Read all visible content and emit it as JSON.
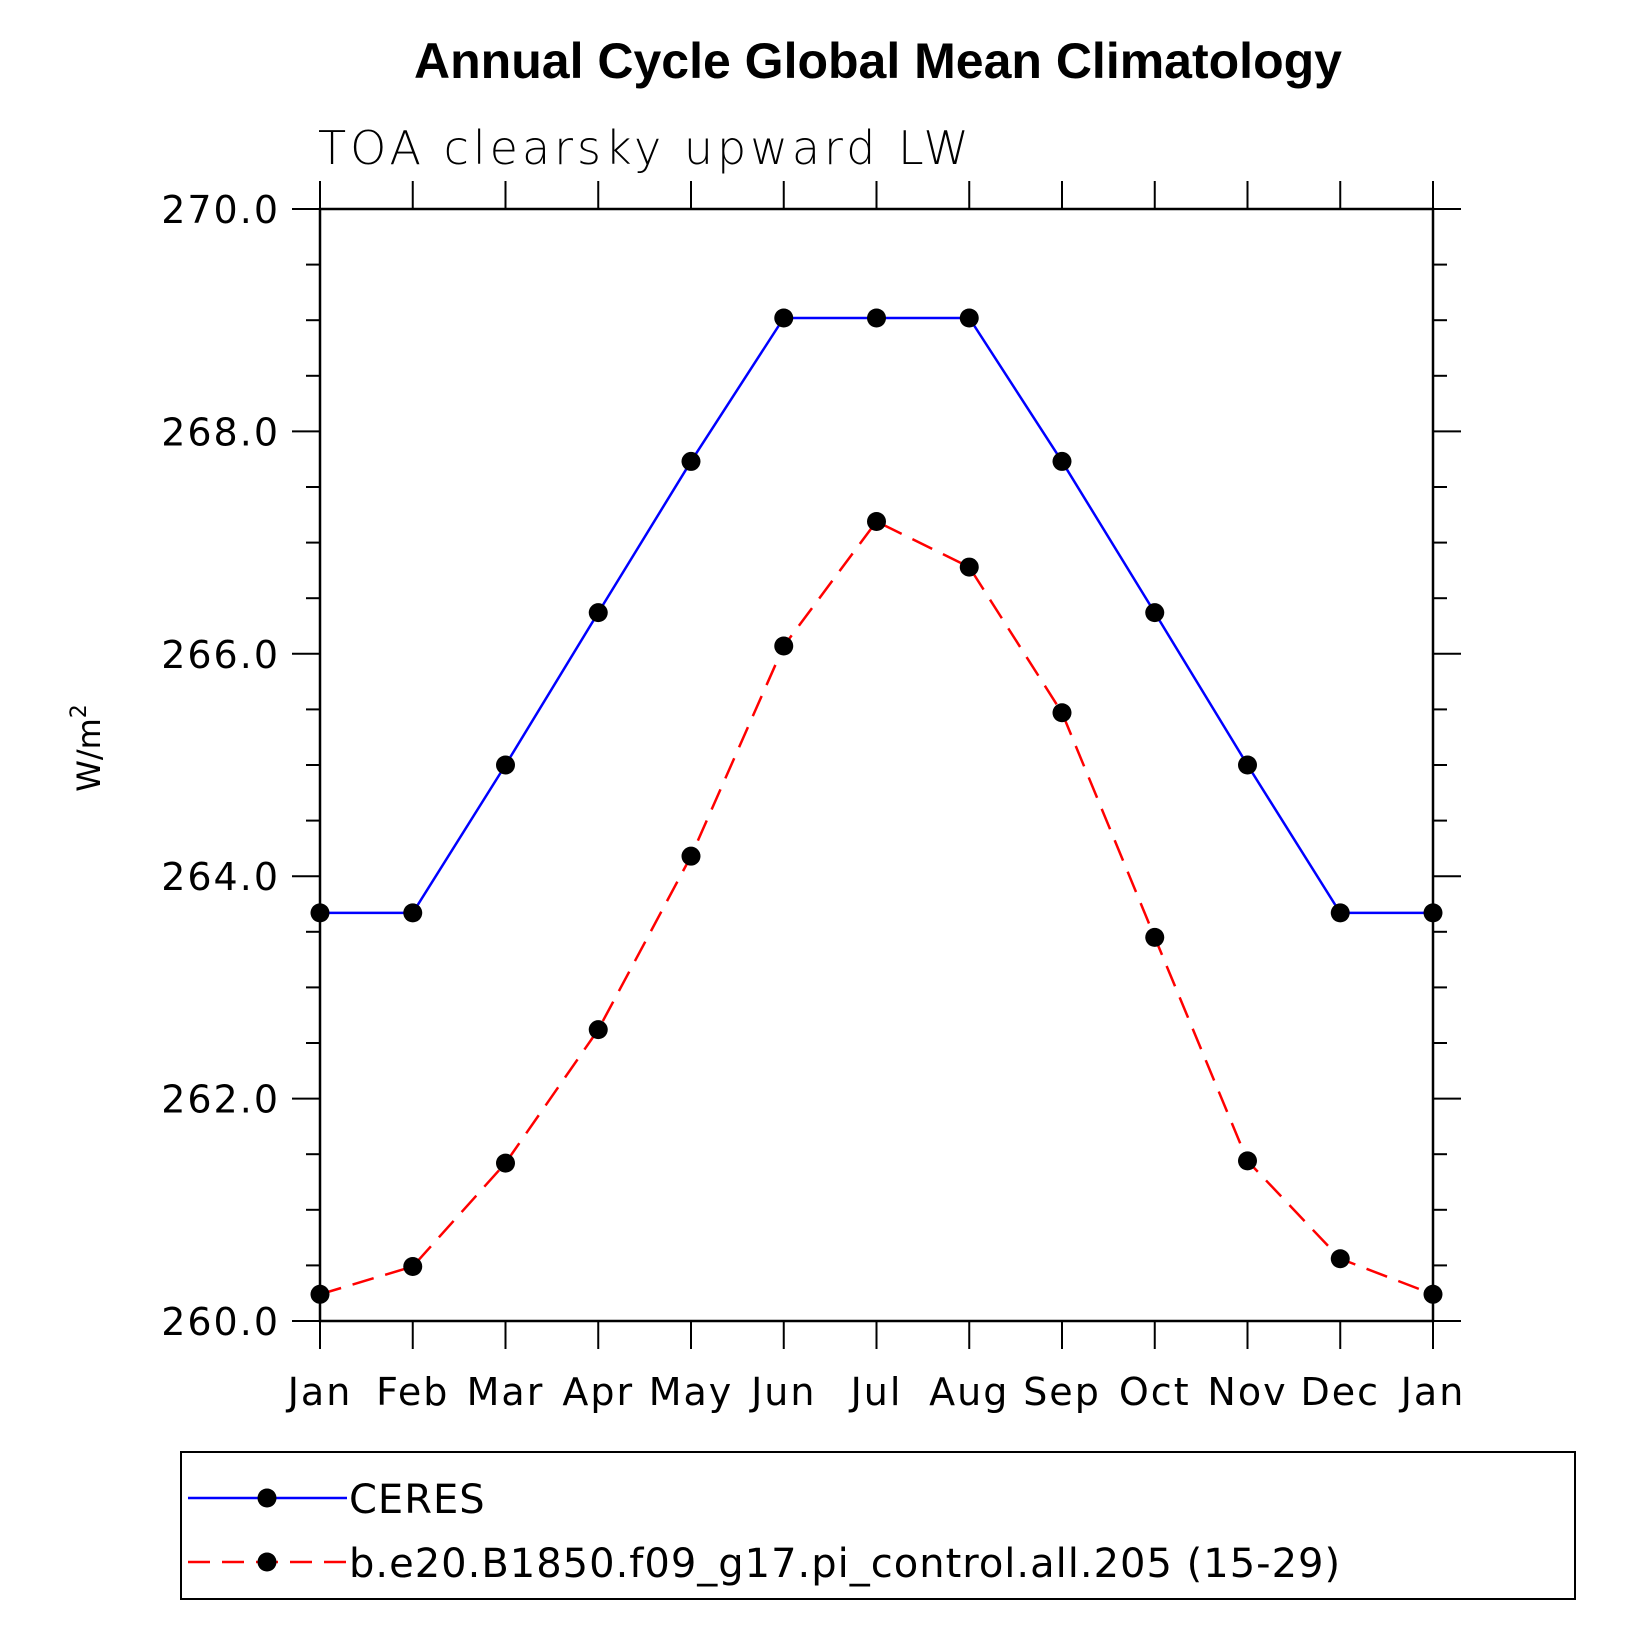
{
  "chart_data": {
    "type": "line",
    "title": "Annual Cycle Global Mean Climatology",
    "subtitle": "TOA clearsky upward LW",
    "ylabel": "W/m",
    "ylabel_superscript": "2",
    "categories": [
      "Jan",
      "Feb",
      "Mar",
      "Apr",
      "May",
      "Jun",
      "Jul",
      "Aug",
      "Sep",
      "Oct",
      "Nov",
      "Dec",
      "Jan"
    ],
    "ylim": [
      260.0,
      270.0
    ],
    "yticks": [
      "260.0",
      "262.0",
      "264.0",
      "266.0",
      "268.0",
      "270.0"
    ],
    "grid": false,
    "legend_position": "bottom",
    "series": [
      {
        "name": "CERES",
        "color": "#0000ff",
        "line_style": "solid",
        "marker": "filled-circle",
        "values": [
          263.67,
          263.67,
          265.0,
          266.37,
          267.73,
          269.02,
          269.02,
          269.02,
          267.73,
          266.37,
          265.0,
          263.67,
          263.67
        ]
      },
      {
        "name": "b.e20.B1850.f09_g17.pi_control.all.205 (15-29)",
        "color": "#ff0000",
        "line_style": "dashed",
        "marker": "filled-circle",
        "values": [
          260.24,
          260.49,
          261.42,
          262.62,
          264.18,
          266.07,
          267.19,
          266.78,
          265.47,
          263.45,
          261.44,
          260.56,
          260.24
        ]
      }
    ]
  }
}
